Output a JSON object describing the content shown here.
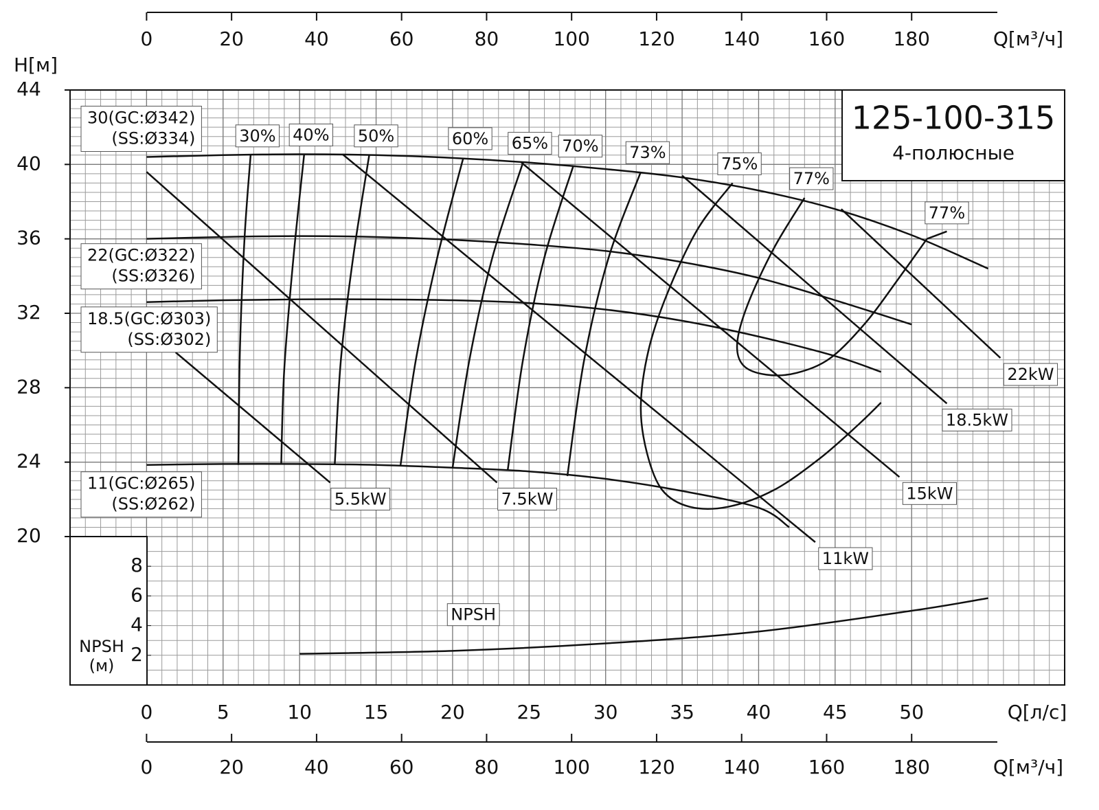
{
  "chart_data": {
    "type": "line",
    "title": "125-100-315",
    "subtitle": "4-полюсные",
    "y_label": "H[м]",
    "x_label": "Q[л/с]",
    "x2_label": "Q[м³/ч]",
    "npsh_axis_label": [
      "NPSH",
      "(м)"
    ],
    "xlim": [
      -5,
      60
    ],
    "xticks": [
      0,
      5,
      10,
      15,
      20,
      25,
      30,
      35,
      40,
      45,
      50
    ],
    "x2lim": [
      -18,
      216
    ],
    "x2ticks": [
      0,
      20,
      40,
      60,
      80,
      100,
      120,
      140,
      160,
      180
    ],
    "ylim": [
      20,
      44
    ],
    "yticks": [
      20,
      24,
      28,
      32,
      36,
      40,
      44
    ],
    "npsh_ylim": [
      0,
      10
    ],
    "npsh_yticks": [
      2,
      4,
      6,
      8
    ],
    "grid": true,
    "x_minor_step": 1,
    "y_minor_step": 0.5,
    "npsh_minor_step": 1,
    "color": "#111111",
    "series": [
      {
        "label_lines": [
          "30(GC:Ø342)",
          "(SS:Ø334)"
        ],
        "x": [
          0,
          5,
          10,
          15,
          20,
          25,
          30,
          35,
          40,
          45,
          50,
          55
        ],
        "values": [
          40.4,
          40.5,
          40.55,
          40.5,
          40.35,
          40.1,
          39.75,
          39.3,
          38.6,
          37.6,
          36.2,
          34.4
        ]
      },
      {
        "label_lines": [
          "22(GC:Ø322)",
          "(SS:Ø326)"
        ],
        "x": [
          0,
          5,
          10,
          15,
          20,
          25,
          30,
          35,
          40,
          45,
          50
        ],
        "values": [
          36,
          36.1,
          36.15,
          36.1,
          35.95,
          35.7,
          35.35,
          34.75,
          33.9,
          32.7,
          31.4
        ]
      },
      {
        "label_lines": [
          "18.5(GC:Ø303)",
          "(SS:Ø302)"
        ],
        "x": [
          0,
          5,
          10,
          15,
          20,
          25,
          30,
          35,
          40,
          45,
          48
        ],
        "values": [
          32.6,
          32.7,
          32.75,
          32.75,
          32.7,
          32.55,
          32.2,
          31.6,
          30.75,
          29.7,
          28.85
        ]
      },
      {
        "label_lines": [
          "11(GC:Ø265)",
          "(SS:Ø262)"
        ],
        "x": [
          0,
          5,
          10,
          15,
          20,
          25,
          30,
          35,
          40,
          42
        ],
        "values": [
          23.85,
          23.9,
          23.9,
          23.85,
          23.7,
          23.5,
          23.1,
          22.45,
          21.55,
          20.5
        ]
      }
    ],
    "power_lines": [
      {
        "label": "5.5kW",
        "x": [
          1.9,
          12
        ],
        "values": [
          29.9,
          22.9
        ]
      },
      {
        "label": "7.5kW",
        "x": [
          0,
          22.9
        ],
        "values": [
          39.6,
          22.9
        ]
      },
      {
        "label": "11kW",
        "x": [
          12.8,
          43.7
        ],
        "values": [
          40.55,
          19.7
        ]
      },
      {
        "label": "15kW",
        "x": [
          24.5,
          49.2
        ],
        "values": [
          40.1,
          23.2
        ]
      },
      {
        "label": "18.5kW",
        "x": [
          35,
          52.3
        ],
        "values": [
          39.4,
          27.15
        ]
      },
      {
        "label": "22kW",
        "x": [
          45.4,
          55.8
        ],
        "values": [
          37.6,
          29.6
        ]
      }
    ],
    "efficiency_curves": [
      {
        "label": "30%",
        "x": [
          6.8,
          6.4,
          6.1,
          6.0
        ],
        "values": [
          40.5,
          36,
          30,
          23.85
        ]
      },
      {
        "label": "40%",
        "x": [
          10.3,
          9.6,
          9.0,
          8.8
        ],
        "values": [
          40.55,
          35,
          29,
          23.9
        ]
      },
      {
        "label": "50%",
        "x": [
          14.55,
          13.5,
          12.7,
          12.3
        ],
        "values": [
          40.5,
          35,
          29.5,
          23.9
        ]
      },
      {
        "label": "60%",
        "x": [
          20.7,
          19.0,
          17.6,
          16.6
        ],
        "values": [
          40.35,
          35,
          29.5,
          23.85
        ]
      },
      {
        "label": "65%",
        "x": [
          24.6,
          22.6,
          21.1,
          20.0
        ],
        "values": [
          40.1,
          35,
          29.5,
          23.7
        ]
      },
      {
        "label": "70%",
        "x": [
          27.9,
          26.0,
          24.6,
          23.6
        ],
        "values": [
          39.95,
          35,
          29.5,
          23.55
        ]
      },
      {
        "label": "73%",
        "x": [
          32.3,
          30.2,
          28.6,
          27.5
        ],
        "values": [
          39.6,
          35,
          29.5,
          23.25
        ]
      },
      {
        "label": "75%",
        "x": [
          38.3,
          36,
          34,
          32.8,
          32.3,
          32.7,
          33.7,
          35.5,
          38,
          41,
          44,
          46.5,
          48
        ],
        "values": [
          39.0,
          36.5,
          33,
          30,
          27,
          24.5,
          22.5,
          21.6,
          21.6,
          22.5,
          24.2,
          26,
          27.2
        ]
      },
      {
        "label": "77%",
        "x": [
          43,
          41,
          39.3,
          38.6,
          39,
          40.5,
          42.5,
          44.7,
          47,
          49,
          51
        ],
        "values": [
          38.2,
          35.5,
          32.5,
          30.4,
          29.2,
          28.7,
          28.8,
          29.6,
          31.5,
          33.7,
          36.0
        ]
      },
      {
        "label": "77%",
        "x": [
          51,
          52.3
        ],
        "values": [
          36.0,
          36.4
        ]
      }
    ],
    "npsh": {
      "label": "NPSH",
      "x": [
        10,
        20,
        30,
        40,
        50,
        55
      ],
      "values": [
        2.1,
        2.3,
        2.8,
        3.6,
        5.0,
        5.85
      ]
    }
  }
}
